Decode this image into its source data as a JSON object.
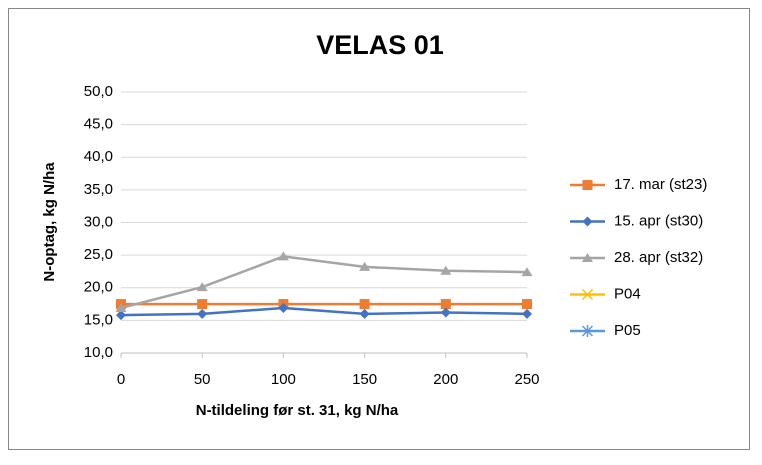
{
  "chart_data": {
    "type": "line",
    "title": "VELAS 01",
    "xlabel": "N-tildeling før st. 31, kg N/ha",
    "ylabel": "N-optag, kg N/ha",
    "x": [
      0,
      50,
      100,
      150,
      200,
      250
    ],
    "series": [
      {
        "name": "17. mar (st23)",
        "color": "#ed7d31",
        "marker": "square",
        "values": [
          17.5,
          17.5,
          17.5,
          17.5,
          17.5,
          17.5
        ]
      },
      {
        "name": "15. apr (st30)",
        "color": "#4472c4",
        "marker": "diamond",
        "values": [
          15.8,
          16.0,
          16.9,
          16.0,
          16.2,
          16.0
        ]
      },
      {
        "name": "28. apr (st32)",
        "color": "#a5a5a5",
        "marker": "triangle",
        "values": [
          16.9,
          20.1,
          24.8,
          23.2,
          22.6,
          22.4
        ]
      },
      {
        "name": "P04",
        "color": "#ffc000",
        "marker": "x",
        "values": [
          null,
          null,
          null,
          null,
          null,
          null
        ]
      },
      {
        "name": "P05",
        "color": "#5b9bd5",
        "marker": "star",
        "values": [
          null,
          null,
          null,
          null,
          null,
          null
        ]
      }
    ],
    "xlim": [
      0,
      250
    ],
    "xticks": [
      0,
      50,
      100,
      150,
      200,
      250
    ],
    "ylim": [
      10,
      50
    ],
    "yticks": [
      {
        "value": 10,
        "label": "10,0"
      },
      {
        "value": 15,
        "label": "15,0"
      },
      {
        "value": 20,
        "label": "20,0"
      },
      {
        "value": 25,
        "label": "25,0"
      },
      {
        "value": 30,
        "label": "30,0"
      },
      {
        "value": 35,
        "label": "35,0"
      },
      {
        "value": 40,
        "label": "40,0"
      },
      {
        "value": 45,
        "label": "45,0"
      },
      {
        "value": 50,
        "label": "50,0"
      }
    ],
    "grid": true,
    "legend": "right"
  }
}
